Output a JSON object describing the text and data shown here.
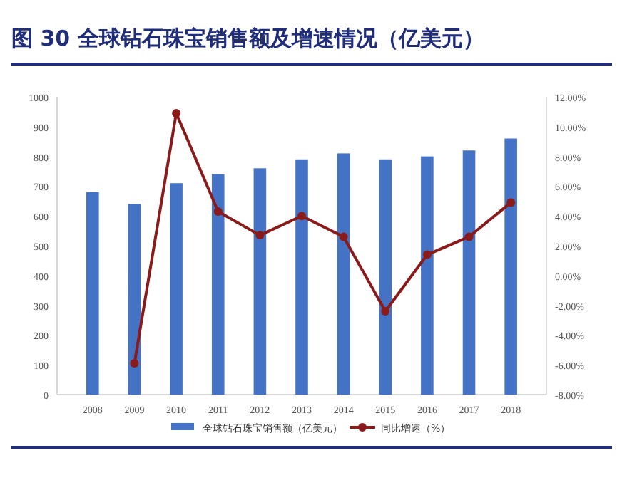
{
  "chart_data": {
    "type": "bar",
    "title": "图 30 全球钻石珠宝销售额及增速情况（亿美元）",
    "categories": [
      "2008",
      "2009",
      "2010",
      "2011",
      "2012",
      "2013",
      "2014",
      "2015",
      "2016",
      "2017",
      "2018"
    ],
    "series": [
      {
        "name": "全球钻石珠宝销售额（亿美元）",
        "color": "#4472c4",
        "values": [
          680,
          640,
          710,
          740,
          760,
          790,
          810,
          790,
          800,
          820,
          860
        ]
      },
      {
        "name": "同比增速（%）",
        "type": "line",
        "axis": "y2",
        "color": "#8b1a1a",
        "marker": "circle",
        "values": [
          null,
          -5.9,
          10.9,
          4.3,
          2.7,
          4.0,
          2.6,
          -2.4,
          1.4,
          2.6,
          4.9
        ]
      }
    ],
    "ylim": [
      0,
      1000
    ],
    "yticks": [
      0,
      100,
      200,
      300,
      400,
      500,
      600,
      700,
      800,
      900,
      1000
    ],
    "y2lim": [
      -8,
      12
    ],
    "y2ticks": [
      {
        "value": -8,
        "label": "-8.00%"
      },
      {
        "value": -6,
        "label": "-6.00%"
      },
      {
        "value": -4,
        "label": "-4.00%"
      },
      {
        "value": -2,
        "label": "-2.00%"
      },
      {
        "value": 0,
        "label": "0.00%"
      },
      {
        "value": 2,
        "label": "2.00%"
      },
      {
        "value": 4,
        "label": "4.00%"
      },
      {
        "value": 6,
        "label": "6.00%"
      },
      {
        "value": 8,
        "label": "8.00%"
      },
      {
        "value": 10,
        "label": "10.00%"
      },
      {
        "value": 12,
        "label": "12.00%"
      }
    ],
    "legend": "bottom",
    "grid": false
  }
}
